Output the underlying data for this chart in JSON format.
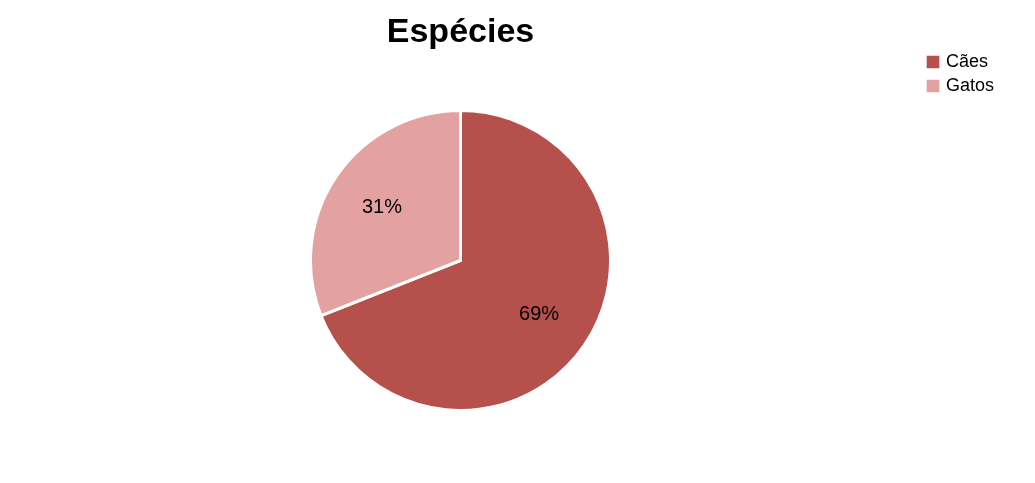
{
  "chart_data": {
    "type": "pie",
    "title": "Espécies",
    "categories": [
      "Cães",
      "Gatos"
    ],
    "values": [
      69,
      31
    ],
    "colors": [
      "#b5504c",
      "#e3a1a2"
    ],
    "value_labels": [
      "69%",
      "31%"
    ],
    "legend": "right"
  }
}
